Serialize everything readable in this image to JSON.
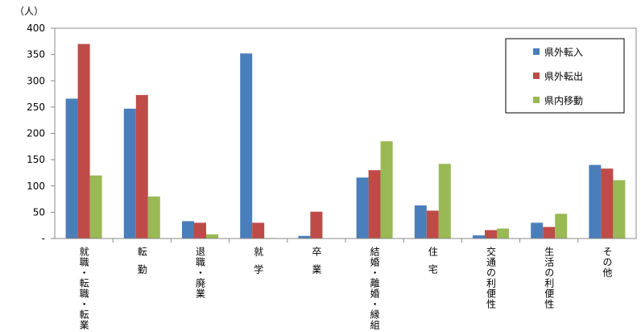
{
  "chart_data": {
    "type": "bar",
    "y_unit": "（人）",
    "categories": [
      "就職・転職・転業",
      "転勤",
      "退職・廃業",
      "就学",
      "卒業",
      "結婚・離婚・縁組",
      "住宅",
      "交通の利便性",
      "生活の利便性",
      "その他"
    ],
    "series": [
      {
        "name": "県外転入",
        "color": "#4a7ebb",
        "values": [
          266,
          247,
          33,
          352,
          5,
          116,
          63,
          6,
          30,
          140
        ]
      },
      {
        "name": "県外転出",
        "color": "#be4b48",
        "values": [
          370,
          273,
          30,
          30,
          51,
          130,
          53,
          16,
          22,
          133
        ]
      },
      {
        "name": "県内移動",
        "color": "#98b954",
        "values": [
          120,
          80,
          8,
          1,
          0,
          185,
          142,
          19,
          47,
          111
        ]
      }
    ],
    "ylim": [
      0,
      400
    ],
    "yticks": [
      {
        "value": 0,
        "label": "-"
      },
      50,
      100,
      150,
      200,
      250,
      300,
      350,
      400
    ],
    "legend": "upper right"
  }
}
